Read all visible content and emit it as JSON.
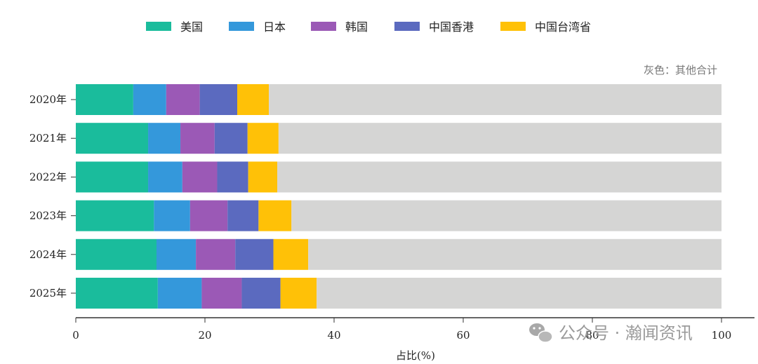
{
  "chart_data": {
    "type": "bar",
    "orientation": "horizontal",
    "stacked": true,
    "categories": [
      "2020年",
      "2021年",
      "2022年",
      "2023年",
      "2024年",
      "2025年"
    ],
    "series": [
      {
        "name": "美国",
        "color": "#1abc9c",
        "values": [
          8.9,
          11.2,
          11.2,
          12.1,
          12.5,
          12.7
        ]
      },
      {
        "name": "日本",
        "color": "#3498db",
        "values": [
          5.1,
          5.0,
          5.3,
          5.6,
          6.1,
          6.8
        ]
      },
      {
        "name": "韩国",
        "color": "#9b59b6",
        "values": [
          5.2,
          5.3,
          5.4,
          5.8,
          6.1,
          6.2
        ]
      },
      {
        "name": "中国香港",
        "color": "#5b6abf",
        "values": [
          5.8,
          5.1,
          4.8,
          4.8,
          5.9,
          6.0
        ]
      },
      {
        "name": "中国台湾省",
        "color": "#ffc107",
        "values": [
          4.9,
          4.8,
          4.5,
          5.1,
          5.4,
          5.6
        ]
      }
    ],
    "remainder": {
      "color": "#d5d5d4",
      "total": 100
    },
    "note": "灰色：其他合计",
    "xlabel": "占比(%)",
    "ylabel": "",
    "xlim": [
      0,
      100
    ],
    "xticks": [
      0,
      20,
      40,
      60,
      80,
      100
    ],
    "grid": false,
    "legend_position": "top-center"
  },
  "watermark": {
    "text": "公众号 · 瀚闻资讯",
    "icon": "wechat-icon"
  }
}
